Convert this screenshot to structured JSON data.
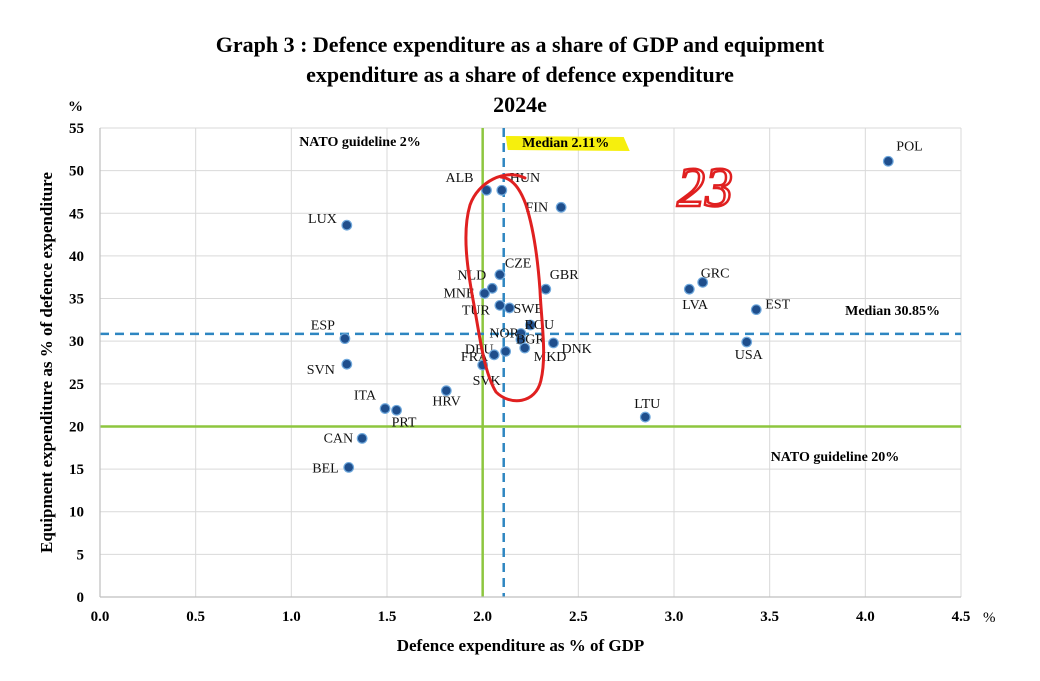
{
  "chart_data": {
    "type": "scatter",
    "title_lines": [
      "Graph 3 : Defence expenditure as a share of GDP and equipment",
      "expenditure as a share of defence expenditure",
      "2024e"
    ],
    "xlabel": "Defence expenditure as % of GDP",
    "ylabel": "Equipment expenditure as % of defence expenditure",
    "x_unit": "%",
    "y_unit": "%",
    "xlim": [
      0,
      4.5
    ],
    "ylim": [
      0,
      55
    ],
    "x_ticks": [
      "0.0",
      "0.5",
      "1.0",
      "1.5",
      "2.0",
      "2.5",
      "3.0",
      "3.5",
      "4.0",
      "4.5"
    ],
    "y_ticks": [
      "0",
      "5",
      "10",
      "15",
      "20",
      "25",
      "30",
      "35",
      "40",
      "45",
      "50",
      "55"
    ],
    "grid": true,
    "point_color": "#1F4E8C",
    "points": [
      {
        "label": "POL",
        "x": 4.12,
        "y": 51.1
      },
      {
        "label": "ALB",
        "x": 2.02,
        "y": 47.7
      },
      {
        "label": "HUN",
        "x": 2.1,
        "y": 47.7
      },
      {
        "label": "FIN",
        "x": 2.41,
        "y": 45.7
      },
      {
        "label": "LUX",
        "x": 1.29,
        "y": 43.6
      },
      {
        "label": "CZE",
        "x": 2.09,
        "y": 37.8
      },
      {
        "label": "NLD",
        "x": 2.05,
        "y": 36.2
      },
      {
        "label": "GBR",
        "x": 2.33,
        "y": 36.1
      },
      {
        "label": "GRC",
        "x": 3.15,
        "y": 36.9
      },
      {
        "label": "LVA",
        "x": 3.08,
        "y": 36.1
      },
      {
        "label": "MNE",
        "x": 2.01,
        "y": 35.6
      },
      {
        "label": "TUR",
        "x": 2.09,
        "y": 34.2
      },
      {
        "label": "SWE",
        "x": 2.14,
        "y": 33.9
      },
      {
        "label": "EST",
        "x": 3.43,
        "y": 33.7
      },
      {
        "label": "ROU",
        "x": 2.25,
        "y": 31.9
      },
      {
        "label": "NOR",
        "x": 2.2,
        "y": 30.9
      },
      {
        "label": "ESP",
        "x": 1.28,
        "y": 30.3
      },
      {
        "label": "BGR",
        "x": 2.2,
        "y": 30.2
      },
      {
        "label": "DNK",
        "x": 2.37,
        "y": 29.8
      },
      {
        "label": "USA",
        "x": 3.38,
        "y": 29.9
      },
      {
        "label": "MKD",
        "x": 2.22,
        "y": 29.2
      },
      {
        "label": "DEU",
        "x": 2.12,
        "y": 28.8
      },
      {
        "label": "FRA",
        "x": 2.06,
        "y": 28.4
      },
      {
        "label": "SVN",
        "x": 1.29,
        "y": 27.3
      },
      {
        "label": "SVK",
        "x": 2.0,
        "y": 27.2
      },
      {
        "label": "HRV",
        "x": 1.81,
        "y": 24.2
      },
      {
        "label": "ITA",
        "x": 1.49,
        "y": 22.1
      },
      {
        "label": "PRT",
        "x": 1.55,
        "y": 21.9
      },
      {
        "label": "LTU",
        "x": 2.85,
        "y": 21.1
      },
      {
        "label": "CAN",
        "x": 1.37,
        "y": 18.6
      },
      {
        "label": "BEL",
        "x": 1.3,
        "y": 15.2
      }
    ],
    "reference_lines": {
      "nato_gdp": {
        "label": "NATO guideline 2%",
        "x": 2.0,
        "color": "#8DC63F"
      },
      "median_gdp": {
        "label": "Median 2.11%",
        "x": 2.11,
        "color": "#2E86C1"
      },
      "median_equipment": {
        "label": "Median 30.85%",
        "y": 30.85,
        "color": "#2E86C1"
      },
      "nato_equipment": {
        "label": "NATO guideline 20%",
        "y": 20,
        "color": "#8DC63F"
      }
    },
    "annotations": {
      "highlight_color": "#F6EE00",
      "handwritten_note": "23",
      "handwritten_color": "#E02020"
    }
  }
}
